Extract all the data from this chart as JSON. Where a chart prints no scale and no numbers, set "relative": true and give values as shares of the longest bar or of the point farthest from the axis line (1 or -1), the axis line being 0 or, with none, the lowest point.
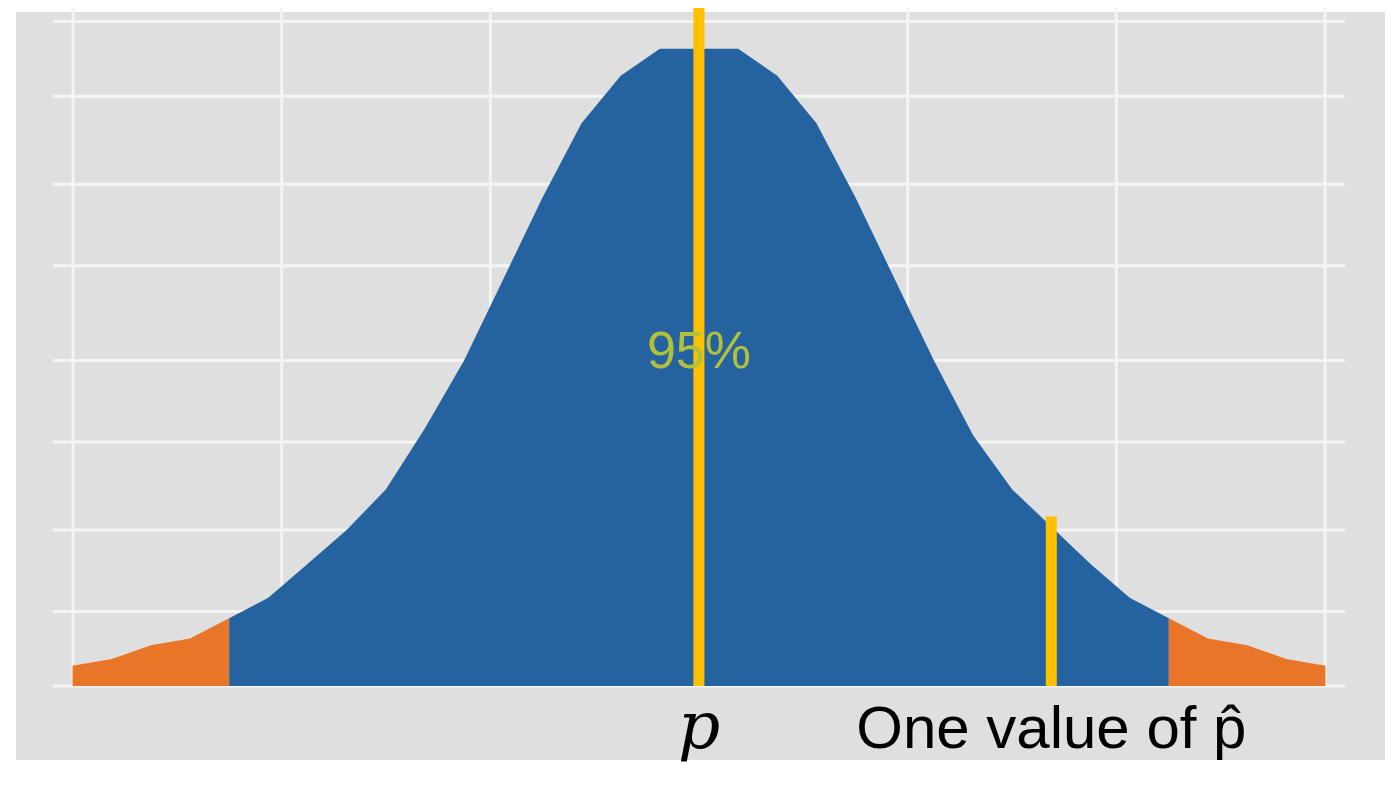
{
  "chart_data": {
    "type": "area",
    "relative": true,
    "grid": true,
    "legend": false,
    "categories": [
      null,
      null,
      null,
      null,
      null,
      null,
      null,
      null,
      null,
      null,
      null,
      null,
      null,
      null,
      null,
      null,
      "p",
      null,
      null,
      null,
      null,
      null,
      null,
      null,
      null,
      "One value of p̂",
      null,
      null,
      null,
      null,
      null,
      null,
      null
    ],
    "series": [
      {
        "color": "#e87528",
        "values": [
          0.03,
          0.04,
          0.06,
          0.07,
          0.1,
          null,
          null,
          null,
          null,
          null,
          null,
          null,
          null,
          null,
          null,
          null,
          null,
          null,
          null,
          null,
          null,
          null,
          null,
          null,
          null,
          null,
          null,
          null,
          null,
          null,
          null,
          null,
          null
        ]
      },
      {
        "color": "#2563a0",
        "values": [
          null,
          null,
          null,
          null,
          0.1,
          0.13,
          0.18,
          0.23,
          0.29,
          0.38,
          0.48,
          0.6,
          0.72,
          0.83,
          0.9,
          0.94,
          null,
          0.94,
          0.9,
          0.83,
          0.72,
          0.6,
          0.48,
          0.37,
          0.29,
          null,
          0.18,
          0.13,
          0.1,
          null,
          null,
          null,
          null
        ]
      },
      {
        "color": "#e87528",
        "values": [
          null,
          null,
          null,
          null,
          null,
          null,
          null,
          null,
          null,
          null,
          null,
          null,
          null,
          null,
          null,
          null,
          null,
          null,
          null,
          null,
          null,
          null,
          null,
          null,
          null,
          null,
          null,
          null,
          0.1,
          0.07,
          0.06,
          0.04,
          0.03
        ]
      },
      {
        "type": "bar",
        "color": "#ffc000",
        "values": [
          null,
          null,
          null,
          null,
          null,
          null,
          null,
          null,
          null,
          null,
          null,
          null,
          null,
          null,
          null,
          null,
          1,
          null,
          null,
          null,
          null,
          null,
          null,
          null,
          null,
          0.25,
          null,
          null,
          null,
          null,
          null,
          null,
          null
        ]
      }
    ],
    "annotations": [
      "95%"
    ]
  }
}
